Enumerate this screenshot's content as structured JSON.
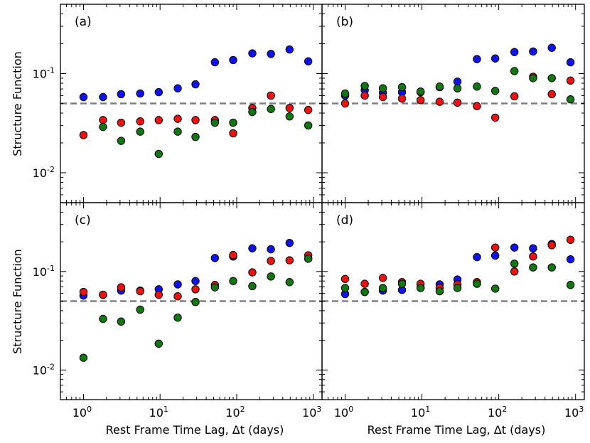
{
  "chart_data": {
    "type": "scatter",
    "layout": "2x2 panels, shared axes",
    "xscale": "log",
    "yscale": "log",
    "xlim": [
      0.5,
      1300
    ],
    "ylim": [
      0.005,
      0.5
    ],
    "xlabel": "Rest Frame Time Lag, Δt (days)",
    "ylabel": "Structure Function",
    "x_ticks": [
      {
        "value": 1,
        "base": "10",
        "exp": "0"
      },
      {
        "value": 10,
        "base": "10",
        "exp": "1"
      },
      {
        "value": 100,
        "base": "10",
        "exp": "2"
      },
      {
        "value": 1000,
        "base": "10",
        "exp": "3"
      }
    ],
    "y_ticks": [
      {
        "value": 0.01,
        "base": "10",
        "exp": "-2"
      },
      {
        "value": 0.1,
        "base": "10",
        "exp": "-1"
      }
    ],
    "reference_line": {
      "y": 0.05,
      "style": "dashed",
      "color": "#808080"
    },
    "series_colors": {
      "blue": "#1010ee",
      "red": "#ee1111",
      "green": "#117711"
    },
    "x": [
      1.0,
      1.8,
      3.1,
      5.5,
      9.6,
      17,
      29,
      52,
      90,
      160,
      280,
      490,
      860
    ],
    "panels": [
      {
        "label": "(a)",
        "series": [
          {
            "name": "blue",
            "x": [
              1.0,
              1.8,
              3.1,
              5.5,
              9.6,
              17,
              29,
              52,
              90,
              160,
              280,
              490,
              860
            ],
            "values": [
              0.058,
              0.058,
              0.062,
              0.063,
              0.065,
              0.071,
              0.078,
              0.13,
              0.137,
              0.16,
              0.158,
              0.175,
              0.133
            ]
          },
          {
            "name": "red",
            "x": [
              1.0,
              1.8,
              3.1,
              5.5,
              9.6,
              17,
              29,
              52,
              90,
              160,
              280,
              490,
              860
            ],
            "values": [
              0.024,
              0.034,
              0.032,
              0.033,
              0.034,
              0.035,
              0.034,
              0.034,
              0.025,
              0.045,
              0.06,
              0.045,
              0.043
            ]
          },
          {
            "name": "green",
            "x": [
              1.8,
              3.1,
              5.5,
              9.6,
              17,
              29,
              52,
              90,
              160,
              280,
              490,
              860
            ],
            "values": [
              0.029,
              0.021,
              0.026,
              0.0155,
              0.026,
              0.023,
              0.032,
              0.032,
              0.041,
              0.044,
              0.037,
              0.03
            ]
          }
        ]
      },
      {
        "label": "(b)",
        "series": [
          {
            "name": "blue",
            "x": [
              1.0,
              1.8,
              3.1,
              5.5,
              9.6,
              17,
              29,
              52,
              90,
              160,
              280,
              490,
              860
            ],
            "values": [
              0.06,
              0.068,
              0.064,
              0.065,
              0.065,
              0.073,
              0.083,
              0.14,
              0.142,
              0.165,
              0.167,
              0.182,
              0.13
            ]
          },
          {
            "name": "red",
            "x": [
              1.0,
              1.8,
              3.1,
              5.5,
              9.6,
              17,
              29,
              52,
              90,
              160,
              280,
              490,
              860
            ],
            "values": [
              0.05,
              0.06,
              0.058,
              0.056,
              0.054,
              0.052,
              0.051,
              0.047,
              0.036,
              0.059,
              0.093,
              0.062,
              0.085
            ]
          },
          {
            "name": "green",
            "x": [
              1.0,
              1.8,
              3.1,
              5.5,
              9.6,
              17,
              29,
              52,
              90,
              160,
              280,
              490,
              860
            ],
            "values": [
              0.063,
              0.075,
              0.071,
              0.073,
              0.066,
              0.074,
              0.071,
              0.074,
              0.067,
              0.106,
              0.09,
              0.09,
              0.055
            ]
          }
        ]
      },
      {
        "label": "(c)",
        "series": [
          {
            "name": "blue",
            "x": [
              1.0,
              1.8,
              3.1,
              5.5,
              9.6,
              17,
              29,
              52,
              90,
              160,
              280,
              490,
              860
            ],
            "values": [
              0.057,
              0.058,
              0.064,
              0.064,
              0.066,
              0.074,
              0.08,
              0.137,
              0.142,
              0.172,
              0.168,
              0.195,
              0.135
            ]
          },
          {
            "name": "red",
            "x": [
              1.0,
              1.8,
              3.1,
              5.5,
              9.6,
              17,
              29,
              52,
              90,
              160,
              280,
              490,
              860
            ],
            "values": [
              0.062,
              0.058,
              0.069,
              0.063,
              0.058,
              0.056,
              0.066,
              0.073,
              0.147,
              0.098,
              0.128,
              0.13,
              0.146
            ]
          },
          {
            "name": "green",
            "x": [
              1.0,
              1.8,
              3.1,
              5.5,
              9.6,
              17,
              29,
              52,
              90,
              160,
              280,
              490,
              860
            ],
            "values": [
              0.0133,
              0.033,
              0.031,
              0.041,
              0.0185,
              0.034,
              0.049,
              0.069,
              0.08,
              0.071,
              0.089,
              0.078,
              0.135
            ]
          }
        ]
      },
      {
        "label": "(d)",
        "series": [
          {
            "name": "blue",
            "x": [
              1.0,
              1.8,
              3.1,
              5.5,
              9.6,
              17,
              29,
              52,
              90,
              160,
              280,
              490,
              860
            ],
            "values": [
              0.059,
              0.062,
              0.064,
              0.065,
              0.069,
              0.074,
              0.083,
              0.14,
              0.145,
              0.175,
              0.172,
              0.19,
              0.133
            ]
          },
          {
            "name": "red",
            "x": [
              1.0,
              1.8,
              3.1,
              5.5,
              9.6,
              17,
              29,
              52,
              90,
              160,
              280,
              490,
              860
            ],
            "values": [
              0.084,
              0.075,
              0.086,
              0.078,
              0.075,
              0.068,
              0.074,
              0.078,
              0.175,
              0.1,
              0.142,
              0.185,
              0.21
            ]
          },
          {
            "name": "green",
            "x": [
              1.0,
              1.8,
              3.1,
              5.5,
              9.6,
              17,
              29,
              52,
              90,
              160,
              280,
              490,
              860
            ],
            "values": [
              0.068,
              0.062,
              0.068,
              0.075,
              0.068,
              0.063,
              0.068,
              0.075,
              0.067,
              0.12,
              0.11,
              0.11,
              0.073
            ]
          }
        ]
      }
    ]
  }
}
